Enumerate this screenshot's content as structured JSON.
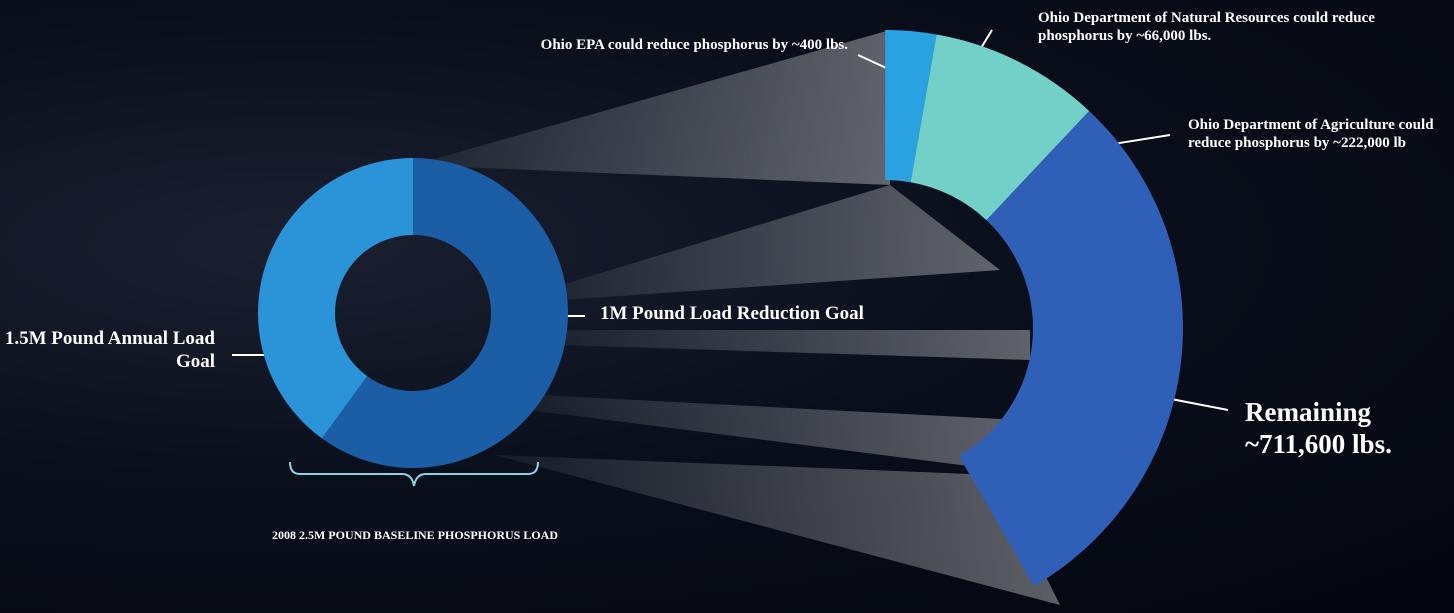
{
  "chart_data": [
    {
      "type": "pie",
      "categories": [
        "1.5M Pound Annual Load Goal",
        "1M Pound Load Reduction Goal"
      ],
      "values": [
        1500000,
        1000000
      ],
      "colors": [
        "#1b5ea6",
        "#2b93d8"
      ],
      "annotation": "2008 2.5M POUND BASELINE PHOSPHORUS LOAD"
    },
    {
      "type": "pie",
      "categories": [
        "Ohio EPA could reduce phosphorus by ~400 lbs.",
        "Ohio Department of Natural Resources could reduce phosphorus by ~66,000 lbs.",
        "Ohio Department of Agriculture could reduce phosphorus by ~222,000 lb",
        "Remaining ~711,600 lbs."
      ],
      "values": [
        400,
        66000,
        222000,
        711600
      ],
      "colors": [
        "#7b6fc6",
        "#2aa2e2",
        "#72d0c8",
        "#2f5fb6"
      ]
    }
  ]
}
